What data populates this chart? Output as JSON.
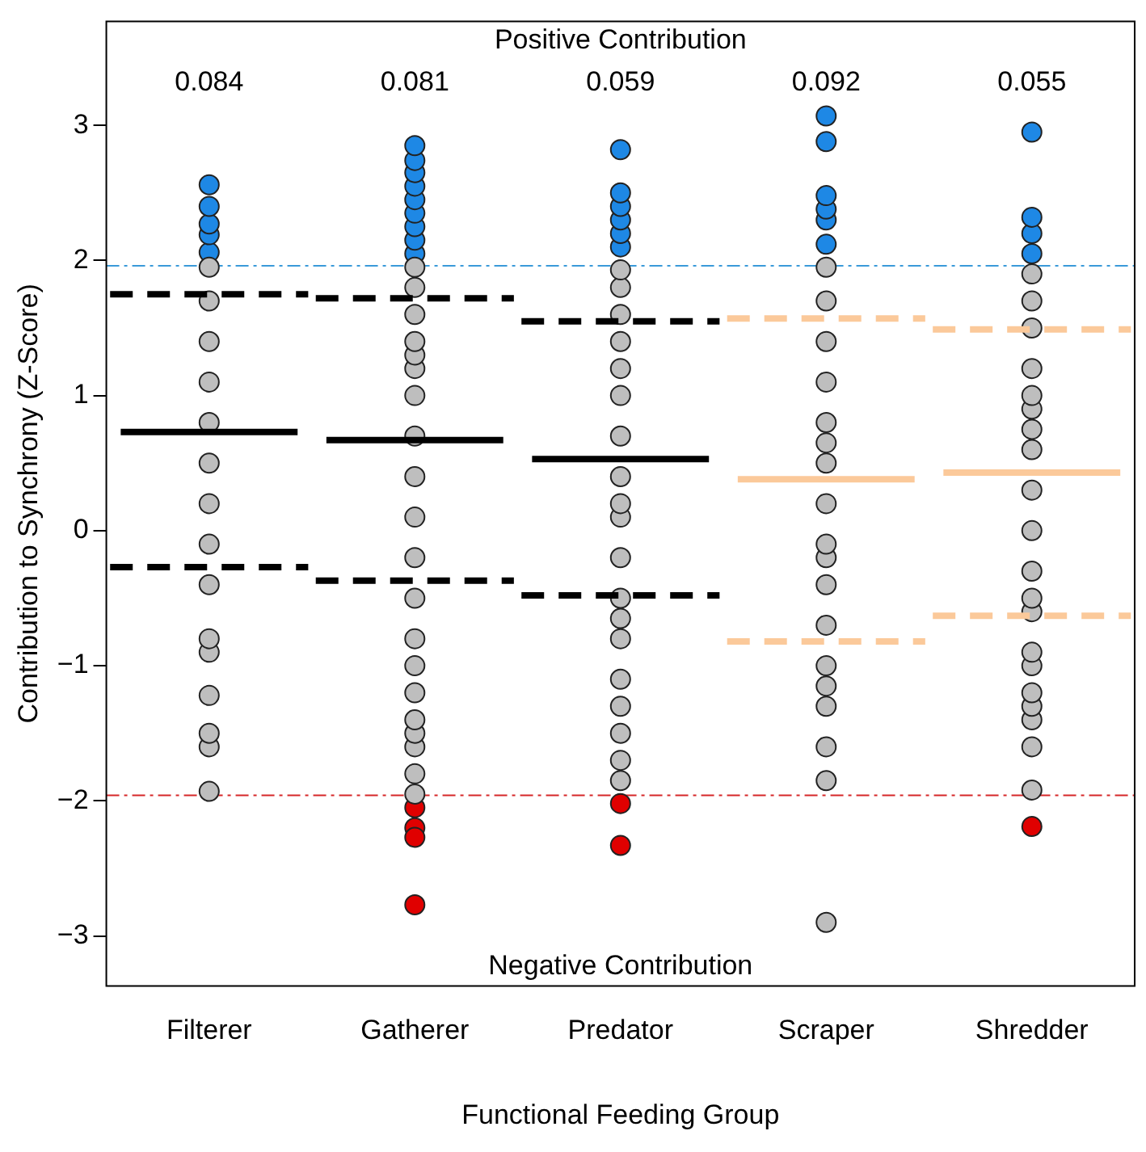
{
  "chart_data": {
    "type": "box",
    "xlabel": "Functional Feeding Group",
    "ylabel": "Contribution to Synchrony (Z-Score)",
    "categories": [
      "Filterer",
      "Gatherer",
      "Predator",
      "Scraper",
      "Shredder"
    ],
    "ylim": [
      -3.37,
      3.77
    ],
    "yticks": [
      -3,
      -2,
      -1,
      0,
      1,
      2,
      3
    ],
    "grid": false,
    "legend": false,
    "series": [
      {
        "type": "box",
        "colors": [
          "#000000",
          "#000000",
          "#000000",
          "#fbc99a",
          "#fbc99a"
        ],
        "boxes": [
          {
            "low": -0.27,
            "q1": -0.27,
            "median": 0.73,
            "q3": 1.75,
            "high": 1.75
          },
          {
            "low": -0.37,
            "q1": -0.37,
            "median": 0.67,
            "q3": 1.72,
            "high": 1.72
          },
          {
            "low": -0.48,
            "q1": -0.48,
            "median": 0.53,
            "q3": 1.55,
            "high": 1.55
          },
          {
            "low": -0.82,
            "q1": -0.82,
            "median": 0.38,
            "q3": 1.57,
            "high": 1.57
          },
          {
            "low": -0.63,
            "q1": -0.63,
            "median": 0.43,
            "q3": 1.49,
            "high": 1.49
          }
        ]
      },
      {
        "type": "scatter",
        "marker": "circle",
        "color": "#bebebe",
        "x": [
          "Filterer",
          "Filterer",
          "Filterer",
          "Filterer",
          "Filterer",
          "Filterer",
          "Filterer",
          "Filterer",
          "Filterer",
          "Filterer",
          "Filterer",
          "Filterer",
          "Filterer",
          "Filterer",
          "Filterer",
          "Gatherer",
          "Gatherer",
          "Gatherer",
          "Gatherer",
          "Gatherer",
          "Gatherer",
          "Gatherer",
          "Gatherer",
          "Gatherer",
          "Gatherer",
          "Gatherer",
          "Gatherer",
          "Gatherer",
          "Gatherer",
          "Gatherer",
          "Gatherer",
          "Gatherer",
          "Gatherer",
          "Gatherer",
          "Gatherer",
          "Predator",
          "Predator",
          "Predator",
          "Predator",
          "Predator",
          "Predator",
          "Predator",
          "Predator",
          "Predator",
          "Predator",
          "Predator",
          "Predator",
          "Predator",
          "Predator",
          "Predator",
          "Predator",
          "Predator",
          "Predator",
          "Predator",
          "Scraper",
          "Scraper",
          "Scraper",
          "Scraper",
          "Scraper",
          "Scraper",
          "Scraper",
          "Scraper",
          "Scraper",
          "Scraper",
          "Scraper",
          "Scraper",
          "Scraper",
          "Scraper",
          "Scraper",
          "Scraper",
          "Scraper",
          "Scraper",
          "Shredder",
          "Shredder",
          "Shredder",
          "Shredder",
          "Shredder",
          "Shredder",
          "Shredder",
          "Shredder",
          "Shredder",
          "Shredder",
          "Shredder",
          "Shredder",
          "Shredder",
          "Shredder",
          "Shredder",
          "Shredder",
          "Shredder",
          "Shredder",
          "Shredder",
          "Shredder"
        ],
        "values": [
          -1.93,
          -1.6,
          -1.5,
          -1.22,
          -0.9,
          -0.8,
          -0.4,
          -0.1,
          0.2,
          0.5,
          0.8,
          1.1,
          1.4,
          1.7,
          1.95,
          -1.95,
          -1.8,
          -1.6,
          -1.5,
          -1.4,
          -1.2,
          -1.0,
          -0.8,
          -0.5,
          -0.2,
          0.1,
          0.4,
          0.7,
          1.0,
          1.2,
          1.3,
          1.4,
          1.6,
          1.8,
          1.95,
          -1.85,
          -1.7,
          -1.5,
          -1.3,
          -1.1,
          -0.8,
          -0.65,
          -0.5,
          -0.2,
          0.1,
          0.2,
          0.4,
          0.7,
          1.0,
          1.2,
          1.4,
          1.6,
          1.8,
          1.93,
          -2.9,
          -1.85,
          -1.6,
          -1.3,
          -1.15,
          -1.0,
          -0.7,
          -0.4,
          -0.2,
          -0.1,
          0.2,
          0.5,
          0.65,
          0.8,
          1.1,
          1.4,
          1.7,
          1.95,
          -1.92,
          -1.6,
          -1.4,
          -1.3,
          -1.2,
          -1.0,
          -0.9,
          -0.6,
          -0.5,
          -0.3,
          0.0,
          0.3,
          0.6,
          0.75,
          0.9,
          1.0,
          1.2,
          1.5,
          1.7,
          1.9
        ]
      },
      {
        "type": "scatter",
        "marker": "circle",
        "color": "#1e88e5",
        "x": [
          "Filterer",
          "Filterer",
          "Filterer",
          "Filterer",
          "Filterer",
          "Gatherer",
          "Gatherer",
          "Gatherer",
          "Gatherer",
          "Gatherer",
          "Gatherer",
          "Gatherer",
          "Gatherer",
          "Gatherer",
          "Predator",
          "Predator",
          "Predator",
          "Predator",
          "Predator",
          "Predator",
          "Scraper",
          "Scraper",
          "Scraper",
          "Scraper",
          "Scraper",
          "Scraper",
          "Shredder",
          "Shredder",
          "Shredder",
          "Shredder"
        ],
        "values": [
          2.06,
          2.19,
          2.27,
          2.4,
          2.56,
          2.05,
          2.15,
          2.25,
          2.35,
          2.45,
          2.55,
          2.65,
          2.74,
          2.85,
          2.1,
          2.2,
          2.3,
          2.4,
          2.5,
          2.82,
          2.12,
          2.3,
          2.38,
          2.48,
          2.88,
          3.07,
          2.05,
          2.2,
          2.32,
          2.95
        ]
      },
      {
        "type": "scatter",
        "marker": "circle",
        "color": "#e00000",
        "x": [
          "Gatherer",
          "Gatherer",
          "Gatherer",
          "Gatherer",
          "Predator",
          "Predator",
          "Shredder"
        ],
        "values": [
          -2.05,
          -2.2,
          -2.27,
          -2.77,
          -2.02,
          -2.33,
          -2.19
        ]
      }
    ],
    "ref_lines": [
      {
        "axis": "y",
        "value": 1.96,
        "color": "#3a9ad9",
        "line_style": "dashed"
      },
      {
        "axis": "y",
        "value": -1.96,
        "color": "#d62728",
        "line_style": "dashed"
      }
    ],
    "annotations": [
      "Positive Contribution",
      "Negative Contribution",
      "0.084",
      "0.081",
      "0.059",
      "0.092",
      "0.055"
    ]
  }
}
